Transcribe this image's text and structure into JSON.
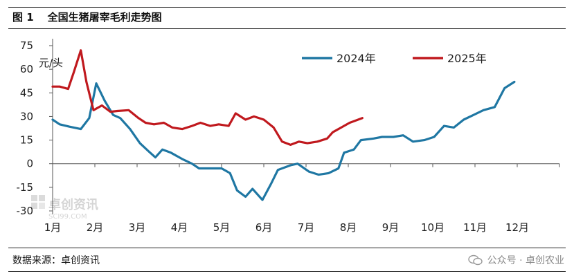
{
  "caption": {
    "label": "图 1",
    "title": "全国生猪屠宰毛利走势图"
  },
  "source": "数据来源：卓创资讯",
  "credit": "公众号 · 卓创农业",
  "watermark": {
    "cn": "卓创资讯",
    "en": "SCI99.COM"
  },
  "colors": {
    "s2024": "#1f77a3",
    "s2025": "#c0191e",
    "axis": "#333333"
  },
  "chart_data": {
    "type": "line",
    "ylabel": "元/头",
    "ylim": [
      -30,
      75
    ],
    "yticks": [
      -30,
      -15,
      0,
      15,
      30,
      45,
      60,
      75
    ],
    "ytick_labels": [
      "-30",
      "-15",
      "0",
      "15",
      "30",
      "45",
      "60",
      "75"
    ],
    "xticks": [
      "1月",
      "2月",
      "3月",
      "4月",
      "5月",
      "6月",
      "7月",
      "8月",
      "9月",
      "10月",
      "11月",
      "12月"
    ],
    "grid": false,
    "legend_position": "top",
    "series": [
      {
        "name": "2024年",
        "color": "#1f77a3",
        "points": [
          [
            0.0,
            28
          ],
          [
            0.25,
            25
          ],
          [
            0.6,
            23.5
          ],
          [
            1.0,
            22
          ],
          [
            1.3,
            29
          ],
          [
            1.55,
            51
          ],
          [
            1.85,
            40
          ],
          [
            2.15,
            31
          ],
          [
            2.4,
            29
          ],
          [
            2.75,
            22
          ],
          [
            3.1,
            13
          ],
          [
            3.4,
            8
          ],
          [
            3.65,
            4
          ],
          [
            3.9,
            9
          ],
          [
            4.2,
            7
          ],
          [
            4.6,
            3
          ],
          [
            4.95,
            0
          ],
          [
            5.2,
            -3
          ],
          [
            5.65,
            -3
          ],
          [
            6.0,
            -3
          ],
          [
            6.3,
            -6
          ],
          [
            6.55,
            -17
          ],
          [
            6.85,
            -21
          ],
          [
            7.1,
            -16
          ],
          [
            7.45,
            -23
          ],
          [
            7.75,
            -13
          ],
          [
            8.0,
            -4
          ],
          [
            8.45,
            -1
          ],
          [
            8.7,
            0
          ],
          [
            9.1,
            -5
          ],
          [
            9.45,
            -7
          ],
          [
            9.8,
            -6
          ],
          [
            10.15,
            -3
          ],
          [
            10.35,
            7
          ],
          [
            10.7,
            9
          ],
          [
            10.95,
            15
          ],
          [
            11.4,
            16
          ],
          [
            11.7,
            17
          ],
          [
            12.1,
            17
          ],
          [
            12.45,
            18
          ],
          [
            12.8,
            14
          ],
          [
            13.2,
            15
          ],
          [
            13.55,
            17
          ],
          [
            13.9,
            24
          ],
          [
            14.25,
            23
          ],
          [
            14.6,
            28
          ],
          [
            14.95,
            31
          ],
          [
            15.3,
            34
          ],
          [
            15.7,
            36
          ],
          [
            16.05,
            48
          ],
          [
            16.4,
            52
          ]
        ]
      },
      {
        "name": "2025年",
        "color": "#c0191e",
        "points": [
          [
            0.0,
            49
          ],
          [
            0.25,
            49
          ],
          [
            0.55,
            47.5
          ],
          [
            0.75,
            58
          ],
          [
            1.0,
            72
          ],
          [
            1.2,
            52
          ],
          [
            1.45,
            34
          ],
          [
            1.75,
            37
          ],
          [
            2.05,
            33
          ],
          [
            2.3,
            33.5
          ],
          [
            2.7,
            34
          ],
          [
            3.05,
            29
          ],
          [
            3.3,
            26
          ],
          [
            3.6,
            25
          ],
          [
            3.95,
            26
          ],
          [
            4.25,
            23
          ],
          [
            4.6,
            22
          ],
          [
            4.95,
            24
          ],
          [
            5.25,
            26
          ],
          [
            5.6,
            24
          ],
          [
            5.9,
            25
          ],
          [
            6.25,
            24
          ],
          [
            6.5,
            32
          ],
          [
            6.85,
            28
          ],
          [
            7.15,
            30
          ],
          [
            7.5,
            28
          ],
          [
            7.85,
            23
          ],
          [
            8.15,
            14
          ],
          [
            8.45,
            12
          ],
          [
            8.75,
            14
          ],
          [
            9.05,
            13
          ],
          [
            9.4,
            14
          ],
          [
            9.75,
            16
          ],
          [
            9.95,
            20
          ],
          [
            10.25,
            23
          ],
          [
            10.55,
            26
          ],
          [
            10.85,
            28
          ],
          [
            11.0,
            29
          ]
        ]
      }
    ]
  }
}
